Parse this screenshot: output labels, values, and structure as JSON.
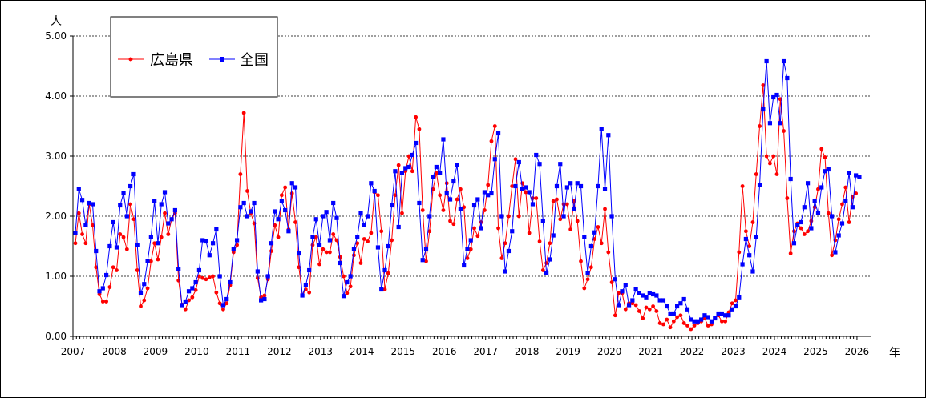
{
  "chart_data": {
    "type": "line",
    "title": "",
    "y_unit_label": "人",
    "x_unit_label": "年",
    "ylim": [
      0,
      5
    ],
    "y_ticks": [
      "0.00",
      "1.00",
      "2.00",
      "3.00",
      "4.00",
      "5.00"
    ],
    "x_start": 2007,
    "x_ticks": [
      "2007",
      "2008",
      "2009",
      "2010",
      "2011",
      "2012",
      "2013",
      "2014",
      "2015",
      "2016",
      "2017",
      "2018",
      "2019",
      "2020",
      "2021",
      "2022",
      "2023",
      "2024",
      "2025",
      "2026"
    ],
    "grid": "horizontal dashed",
    "legend_position": "top-left",
    "series": [
      {
        "name": "広島県",
        "color": "#ff0000",
        "marker": "circle",
        "values": [
          1.55,
          2.05,
          1.7,
          1.55,
          2.2,
          1.85,
          1.15,
          0.7,
          0.58,
          0.58,
          0.82,
          1.15,
          1.1,
          1.7,
          1.65,
          1.45,
          2.2,
          1.95,
          1.1,
          0.5,
          0.6,
          0.8,
          1.25,
          1.55,
          1.28,
          1.65,
          2.05,
          1.7,
          1.95,
          2.05,
          0.93,
          0.53,
          0.45,
          0.6,
          0.65,
          0.77,
          1.0,
          0.97,
          0.95,
          0.98,
          1.0,
          0.73,
          0.55,
          0.45,
          0.55,
          0.85,
          1.4,
          1.52,
          2.7,
          3.72,
          2.42,
          2.05,
          1.88,
          0.97,
          0.65,
          0.68,
          0.95,
          1.42,
          1.85,
          1.65,
          2.35,
          2.48,
          1.78,
          2.38,
          1.9,
          1.15,
          0.68,
          0.78,
          0.73,
          1.52,
          1.65,
          1.2,
          1.45,
          1.4,
          1.4,
          1.7,
          1.6,
          1.32,
          1.0,
          0.72,
          0.83,
          1.35,
          1.55,
          1.22,
          1.62,
          1.58,
          1.72,
          2.4,
          2.35,
          1.75,
          0.78,
          1.05,
          1.6,
          2.35,
          2.85,
          2.05,
          2.75,
          3.0,
          2.75,
          3.65,
          3.45,
          2.1,
          1.25,
          1.75,
          2.45,
          2.72,
          2.35,
          2.1,
          2.55,
          1.92,
          1.87,
          2.28,
          2.45,
          2.15,
          1.3,
          1.45,
          1.8,
          1.67,
          1.9,
          2.1,
          2.52,
          3.25,
          3.5,
          1.8,
          1.3,
          1.55,
          2.0,
          2.5,
          2.95,
          2.0,
          2.55,
          2.4,
          1.72,
          2.3,
          2.3,
          1.58,
          1.1,
          1.22,
          1.55,
          2.25,
          2.28,
          1.95,
          2.2,
          2.2,
          1.78,
          2.25,
          1.92,
          1.25,
          0.8,
          0.95,
          1.15,
          1.62,
          1.82,
          1.55,
          2.12,
          1.4,
          0.9,
          0.35,
          0.72,
          0.72,
          0.45,
          0.55,
          0.55,
          0.52,
          0.42,
          0.3,
          0.48,
          0.45,
          0.5,
          0.42,
          0.22,
          0.2,
          0.28,
          0.15,
          0.25,
          0.32,
          0.35,
          0.22,
          0.18,
          0.12,
          0.18,
          0.22,
          0.25,
          0.3,
          0.18,
          0.2,
          0.3,
          0.35,
          0.25,
          0.25,
          0.4,
          0.55,
          0.6,
          1.4,
          2.5,
          1.75,
          1.5,
          1.9,
          2.7,
          3.5,
          4.18,
          3.0,
          2.88,
          3.0,
          2.7,
          3.95,
          3.42,
          2.3,
          1.38,
          1.75,
          1.88,
          1.8,
          1.7,
          1.75,
          1.92,
          2.15,
          2.45,
          3.12,
          2.98,
          2.05,
          1.35,
          1.6,
          1.95,
          2.2,
          2.48,
          1.9,
          2.32,
          2.38
        ]
      },
      {
        "name": "全国",
        "color": "#0000ff",
        "marker": "square",
        "values": [
          1.72,
          2.45,
          2.27,
          1.85,
          2.22,
          2.2,
          1.42,
          0.75,
          0.8,
          1.02,
          1.5,
          1.9,
          1.48,
          2.18,
          2.38,
          2.0,
          2.5,
          2.7,
          1.52,
          0.72,
          0.87,
          1.25,
          1.65,
          2.25,
          1.55,
          2.2,
          2.4,
          1.88,
          1.95,
          2.1,
          1.12,
          0.52,
          0.58,
          0.75,
          0.8,
          0.9,
          1.1,
          1.6,
          1.58,
          1.35,
          1.55,
          1.78,
          1.0,
          0.52,
          0.62,
          0.9,
          1.45,
          1.6,
          2.15,
          2.22,
          2.0,
          2.08,
          2.22,
          1.08,
          0.6,
          0.62,
          1.0,
          1.55,
          2.08,
          1.95,
          2.25,
          2.1,
          1.75,
          2.55,
          2.48,
          1.38,
          0.68,
          0.85,
          1.1,
          1.65,
          1.95,
          1.52,
          2.0,
          2.07,
          1.6,
          2.22,
          1.97,
          1.22,
          0.67,
          0.9,
          1.0,
          1.45,
          1.65,
          2.05,
          1.85,
          2.0,
          2.55,
          2.42,
          1.48,
          0.78,
          1.1,
          1.5,
          2.18,
          2.75,
          1.82,
          2.72,
          2.8,
          2.82,
          3.02,
          3.22,
          2.22,
          1.27,
          1.45,
          2.0,
          2.65,
          2.82,
          2.72,
          3.28,
          2.38,
          2.28,
          2.58,
          2.85,
          2.12,
          1.18,
          1.45,
          1.6,
          2.18,
          2.28,
          1.8,
          2.4,
          2.35,
          2.38,
          2.95,
          3.38,
          2.0,
          1.08,
          1.42,
          1.75,
          2.5,
          2.9,
          2.45,
          2.48,
          2.4,
          2.2,
          3.02,
          2.87,
          1.92,
          1.05,
          1.28,
          1.68,
          2.5,
          2.87,
          2.0,
          2.48,
          2.55,
          2.12,
          2.55,
          2.5,
          1.65,
          1.05,
          1.5,
          1.73,
          2.5,
          3.45,
          2.45,
          3.35,
          2.0,
          0.95,
          0.52,
          0.75,
          0.85,
          0.52,
          0.6,
          0.78,
          0.72,
          0.68,
          0.65,
          0.72,
          0.7,
          0.68,
          0.6,
          0.6,
          0.5,
          0.38,
          0.38,
          0.5,
          0.55,
          0.62,
          0.45,
          0.28,
          0.25,
          0.25,
          0.28,
          0.35,
          0.32,
          0.25,
          0.3,
          0.38,
          0.38,
          0.35,
          0.35,
          0.45,
          0.5,
          0.65,
          1.2,
          1.62,
          1.35,
          1.08,
          1.65,
          2.52,
          3.78,
          4.58,
          3.55,
          3.98,
          4.02,
          3.55,
          4.58,
          4.3,
          2.62,
          1.55,
          1.85,
          1.9,
          2.15,
          2.55,
          1.8,
          2.25,
          2.05,
          2.48,
          2.75,
          2.78,
          2.0,
          1.4,
          1.68,
          1.88,
          2.25,
          2.72,
          2.15,
          2.68,
          2.65
        ]
      }
    ]
  }
}
